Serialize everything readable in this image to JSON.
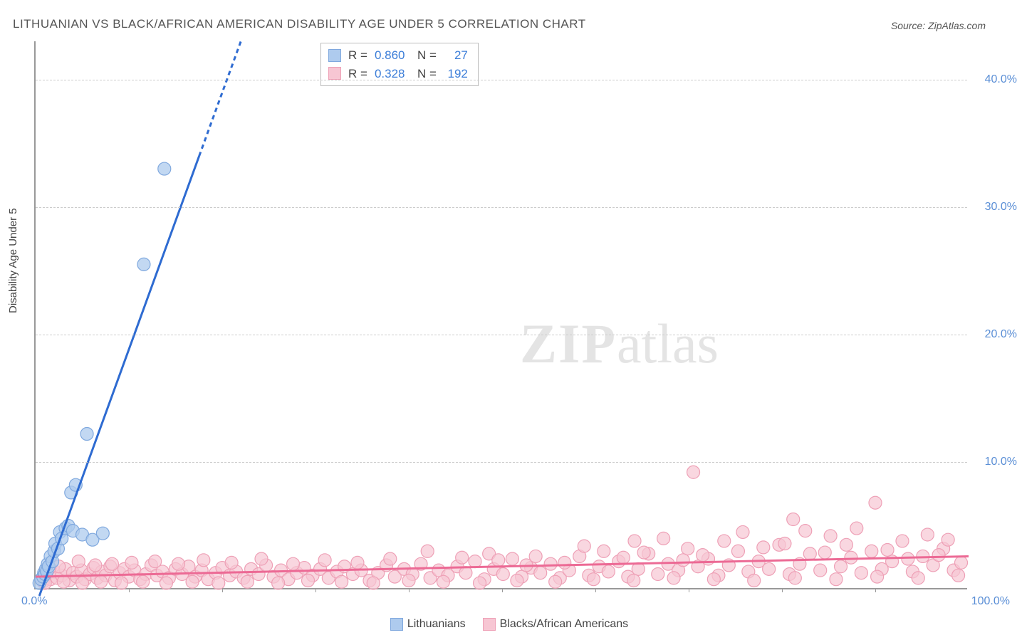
{
  "title": "LITHUANIAN VS BLACK/AFRICAN AMERICAN DISABILITY AGE UNDER 5 CORRELATION CHART",
  "source": "Source: ZipAtlas.com",
  "y_axis_label": "Disability Age Under 5",
  "watermark_zip": "ZIP",
  "watermark_atlas": "atlas",
  "chart": {
    "type": "scatter",
    "xlim": [
      0,
      100
    ],
    "ylim": [
      0,
      43
    ],
    "x_ticks": [
      0,
      100
    ],
    "x_tick_labels": [
      "0.0%",
      "100.0%"
    ],
    "x_minor_tick_step": 10,
    "y_ticks": [
      10,
      20,
      30,
      40
    ],
    "y_tick_labels": [
      "10.0%",
      "20.0%",
      "30.0%",
      "40.0%"
    ],
    "grid_color": "#cccccc",
    "grid_dash": true,
    "background_color": "#ffffff",
    "axis_color": "#999999",
    "series": [
      {
        "name": "Lithuanians",
        "color_fill": "#aecbee",
        "color_stroke": "#7fa8de",
        "marker_radius": 9,
        "marker_opacity": 0.75,
        "trend_color": "#2e6bd1",
        "trend_width": 3,
        "trend_dash_tail": true,
        "trend": {
          "x1": 0.4,
          "y1": -0.5,
          "x2": 22,
          "y2": 43
        },
        "R": "0.860",
        "N": "27",
        "points": [
          [
            0.4,
            0.5
          ],
          [
            0.6,
            0.8
          ],
          [
            0.8,
            1.0
          ],
          [
            0.9,
            1.3
          ],
          [
            1.0,
            1.2
          ],
          [
            1.1,
            1.6
          ],
          [
            1.2,
            1.4
          ],
          [
            1.3,
            2.0
          ],
          [
            1.4,
            1.8
          ],
          [
            1.6,
            2.6
          ],
          [
            1.8,
            2.2
          ],
          [
            2.0,
            3.0
          ],
          [
            2.1,
            3.6
          ],
          [
            2.4,
            3.2
          ],
          [
            2.6,
            4.5
          ],
          [
            2.8,
            4.0
          ],
          [
            3.2,
            4.8
          ],
          [
            3.5,
            5.0
          ],
          [
            4.0,
            4.6
          ],
          [
            3.8,
            7.6
          ],
          [
            4.3,
            8.2
          ],
          [
            5.0,
            4.3
          ],
          [
            6.1,
            3.9
          ],
          [
            7.2,
            4.4
          ],
          [
            5.5,
            12.2
          ],
          [
            11.6,
            25.5
          ],
          [
            13.8,
            33.0
          ]
        ]
      },
      {
        "name": "Blacks/African Americans",
        "color_fill": "#f7c6d3",
        "color_stroke": "#eea0b6",
        "marker_radius": 9,
        "marker_opacity": 0.7,
        "trend_color": "#ec6a95",
        "trend_width": 3,
        "trend_dash_tail": false,
        "trend": {
          "x1": 0,
          "y1": 1.0,
          "x2": 100,
          "y2": 2.6
        },
        "R": "0.328",
        "N": "192",
        "points": [
          [
            0.8,
            0.6
          ],
          [
            1.2,
            1.2
          ],
          [
            1.6,
            0.8
          ],
          [
            2.0,
            1.4
          ],
          [
            2.3,
            0.9
          ],
          [
            2.8,
            1.1
          ],
          [
            3.2,
            1.6
          ],
          [
            3.6,
            0.7
          ],
          [
            4.0,
            1.3
          ],
          [
            4.4,
            1.0
          ],
          [
            4.9,
            1.5
          ],
          [
            5.3,
            0.8
          ],
          [
            5.8,
            1.2
          ],
          [
            6.2,
            1.7
          ],
          [
            6.6,
            0.9
          ],
          [
            7.1,
            1.4
          ],
          [
            7.5,
            1.1
          ],
          [
            8.0,
            1.8
          ],
          [
            8.5,
            0.7
          ],
          [
            9.0,
            1.3
          ],
          [
            9.5,
            1.6
          ],
          [
            10.0,
            1.0
          ],
          [
            10.6,
            1.5
          ],
          [
            11.2,
            0.8
          ],
          [
            11.8,
            1.2
          ],
          [
            12.4,
            1.9
          ],
          [
            13.0,
            1.1
          ],
          [
            13.6,
            1.4
          ],
          [
            14.3,
            0.9
          ],
          [
            15.0,
            1.6
          ],
          [
            15.7,
            1.2
          ],
          [
            16.4,
            1.8
          ],
          [
            17.1,
            1.0
          ],
          [
            17.8,
            1.5
          ],
          [
            18.5,
            0.8
          ],
          [
            19.3,
            1.3
          ],
          [
            20.0,
            1.7
          ],
          [
            20.8,
            1.1
          ],
          [
            21.5,
            1.4
          ],
          [
            22.3,
            0.9
          ],
          [
            23.1,
            1.6
          ],
          [
            23.9,
            1.2
          ],
          [
            24.7,
            1.9
          ],
          [
            25.5,
            1.0
          ],
          [
            26.3,
            1.5
          ],
          [
            27.1,
            0.8
          ],
          [
            28.0,
            1.3
          ],
          [
            28.8,
            1.7
          ],
          [
            29.7,
            1.1
          ],
          [
            30.5,
            1.6
          ],
          [
            31.4,
            0.9
          ],
          [
            32.3,
            1.4
          ],
          [
            33.1,
            1.8
          ],
          [
            34.0,
            1.2
          ],
          [
            34.9,
            1.5
          ],
          [
            35.8,
            0.7
          ],
          [
            36.7,
            1.3
          ],
          [
            37.6,
            1.9
          ],
          [
            38.5,
            1.0
          ],
          [
            39.5,
            1.6
          ],
          [
            40.4,
            1.2
          ],
          [
            41.3,
            2.0
          ],
          [
            42.3,
            0.9
          ],
          [
            43.2,
            1.5
          ],
          [
            44.2,
            1.1
          ],
          [
            45.2,
            1.8
          ],
          [
            46.1,
            1.3
          ],
          [
            47.1,
            2.2
          ],
          [
            48.1,
            0.8
          ],
          [
            49.1,
            1.6
          ],
          [
            50.1,
            1.2
          ],
          [
            51.1,
            2.4
          ],
          [
            52.1,
            1.0
          ],
          [
            53.1,
            1.7
          ],
          [
            54.1,
            1.3
          ],
          [
            55.2,
            2.0
          ],
          [
            56.2,
            0.9
          ],
          [
            57.2,
            1.5
          ],
          [
            58.3,
            2.6
          ],
          [
            59.3,
            1.1
          ],
          [
            60.4,
            1.8
          ],
          [
            61.4,
            1.4
          ],
          [
            62.5,
            2.2
          ],
          [
            63.5,
            1.0
          ],
          [
            64.2,
            3.8
          ],
          [
            64.6,
            1.6
          ],
          [
            65.7,
            2.8
          ],
          [
            66.7,
            1.2
          ],
          [
            67.8,
            2.0
          ],
          [
            68.9,
            1.5
          ],
          [
            69.9,
            3.2
          ],
          [
            70.5,
            9.2
          ],
          [
            71.0,
            1.8
          ],
          [
            72.1,
            2.4
          ],
          [
            73.2,
            1.1
          ],
          [
            74.3,
            1.9
          ],
          [
            75.3,
            3.0
          ],
          [
            76.4,
            1.4
          ],
          [
            77.5,
            2.2
          ],
          [
            78.6,
            1.6
          ],
          [
            79.7,
            3.5
          ],
          [
            80.8,
            1.2
          ],
          [
            81.2,
            5.5
          ],
          [
            81.9,
            2.0
          ],
          [
            83.0,
            2.8
          ],
          [
            84.1,
            1.5
          ],
          [
            85.2,
            4.2
          ],
          [
            86.3,
            1.8
          ],
          [
            87.4,
            2.5
          ],
          [
            88.5,
            1.3
          ],
          [
            89.6,
            3.0
          ],
          [
            90.0,
            6.8
          ],
          [
            90.7,
            1.6
          ],
          [
            91.8,
            2.2
          ],
          [
            92.9,
            3.8
          ],
          [
            94.0,
            1.4
          ],
          [
            95.1,
            2.6
          ],
          [
            96.2,
            1.9
          ],
          [
            97.3,
            3.2
          ],
          [
            98.4,
            1.5
          ],
          [
            99.2,
            2.1
          ],
          [
            1.0,
            0.5
          ],
          [
            3.0,
            0.6
          ],
          [
            5.0,
            0.5
          ],
          [
            7.0,
            0.6
          ],
          [
            9.2,
            0.5
          ],
          [
            11.5,
            0.6
          ],
          [
            14.0,
            0.5
          ],
          [
            16.8,
            0.6
          ],
          [
            19.6,
            0.5
          ],
          [
            22.7,
            0.6
          ],
          [
            26.0,
            0.5
          ],
          [
            29.2,
            0.7
          ],
          [
            32.8,
            0.6
          ],
          [
            36.2,
            0.5
          ],
          [
            40.0,
            0.7
          ],
          [
            43.7,
            0.6
          ],
          [
            47.6,
            0.5
          ],
          [
            51.6,
            0.7
          ],
          [
            55.7,
            0.6
          ],
          [
            59.8,
            0.8
          ],
          [
            64.1,
            0.7
          ],
          [
            68.4,
            0.9
          ],
          [
            72.7,
            0.8
          ],
          [
            77.0,
            0.7
          ],
          [
            81.4,
            0.9
          ],
          [
            85.8,
            0.8
          ],
          [
            90.2,
            1.0
          ],
          [
            94.6,
            0.9
          ],
          [
            98.9,
            1.1
          ],
          [
            42.0,
            3.0
          ],
          [
            48.6,
            2.8
          ],
          [
            53.6,
            2.6
          ],
          [
            58.8,
            3.4
          ],
          [
            63.0,
            2.5
          ],
          [
            67.3,
            4.0
          ],
          [
            71.5,
            2.7
          ],
          [
            75.8,
            4.5
          ],
          [
            80.3,
            3.6
          ],
          [
            84.6,
            2.9
          ],
          [
            88.0,
            4.8
          ],
          [
            91.3,
            3.1
          ],
          [
            93.5,
            2.4
          ],
          [
            95.6,
            4.3
          ],
          [
            96.8,
            2.7
          ],
          [
            97.8,
            3.9
          ],
          [
            73.8,
            3.8
          ],
          [
            78.0,
            3.3
          ],
          [
            82.5,
            4.6
          ],
          [
            86.9,
            3.5
          ],
          [
            65.2,
            2.9
          ],
          [
            69.4,
            2.3
          ],
          [
            56.7,
            2.1
          ],
          [
            60.9,
            3.0
          ],
          [
            52.6,
            1.9
          ],
          [
            45.7,
            2.5
          ],
          [
            49.6,
            2.3
          ],
          [
            38.0,
            2.4
          ],
          [
            34.5,
            2.1
          ],
          [
            31.0,
            2.3
          ],
          [
            27.6,
            2.0
          ],
          [
            24.2,
            2.4
          ],
          [
            21.0,
            2.1
          ],
          [
            18.0,
            2.3
          ],
          [
            15.3,
            2.0
          ],
          [
            12.8,
            2.2
          ],
          [
            10.3,
            2.1
          ],
          [
            8.2,
            2.0
          ],
          [
            6.4,
            1.9
          ],
          [
            4.6,
            2.2
          ],
          [
            2.5,
            1.8
          ],
          [
            1.5,
            1.7
          ]
        ]
      }
    ]
  },
  "legend": {
    "rows": [
      {
        "swatch_fill": "#aecbee",
        "swatch_stroke": "#7fa8de",
        "r_label": "R =",
        "r_val": "0.860",
        "n_label": "N =",
        "n_val": "27"
      },
      {
        "swatch_fill": "#f7c6d3",
        "swatch_stroke": "#eea0b6",
        "r_label": "R =",
        "r_val": "0.328",
        "n_label": "N =",
        "n_val": "192"
      }
    ]
  },
  "bottom_legend": {
    "items": [
      {
        "swatch_fill": "#aecbee",
        "swatch_stroke": "#7fa8de",
        "label": "Lithuanians"
      },
      {
        "swatch_fill": "#f7c6d3",
        "swatch_stroke": "#eea0b6",
        "label": "Blacks/African Americans"
      }
    ]
  }
}
